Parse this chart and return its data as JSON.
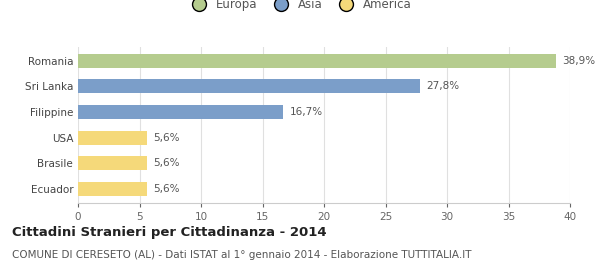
{
  "categories": [
    "Romania",
    "Sri Lanka",
    "Filippine",
    "USA",
    "Brasile",
    "Ecuador"
  ],
  "values": [
    38.9,
    27.8,
    16.7,
    5.6,
    5.6,
    5.6
  ],
  "labels": [
    "38,9%",
    "27,8%",
    "16,7%",
    "5,6%",
    "5,6%",
    "5,6%"
  ],
  "colors": [
    "#b5cc8e",
    "#7b9ec9",
    "#7b9ec9",
    "#f5d97a",
    "#f5d97a",
    "#f5d97a"
  ],
  "legend_items": [
    {
      "label": "Europa",
      "color": "#b5cc8e"
    },
    {
      "label": "Asia",
      "color": "#7b9ec9"
    },
    {
      "label": "America",
      "color": "#f5d97a"
    }
  ],
  "xlim": [
    0,
    40
  ],
  "xticks": [
    0,
    5,
    10,
    15,
    20,
    25,
    30,
    35,
    40
  ],
  "title": "Cittadini Stranieri per Cittadinanza - 2014",
  "subtitle": "COMUNE DI CERESETO (AL) - Dati ISTAT al 1° gennaio 2014 - Elaborazione TUTTITALIA.IT",
  "background_color": "#ffffff",
  "grid_color": "#e0e0e0",
  "bar_height": 0.55,
  "title_fontsize": 9.5,
  "subtitle_fontsize": 7.5,
  "label_fontsize": 7.5,
  "tick_fontsize": 7.5,
  "legend_fontsize": 8.5
}
